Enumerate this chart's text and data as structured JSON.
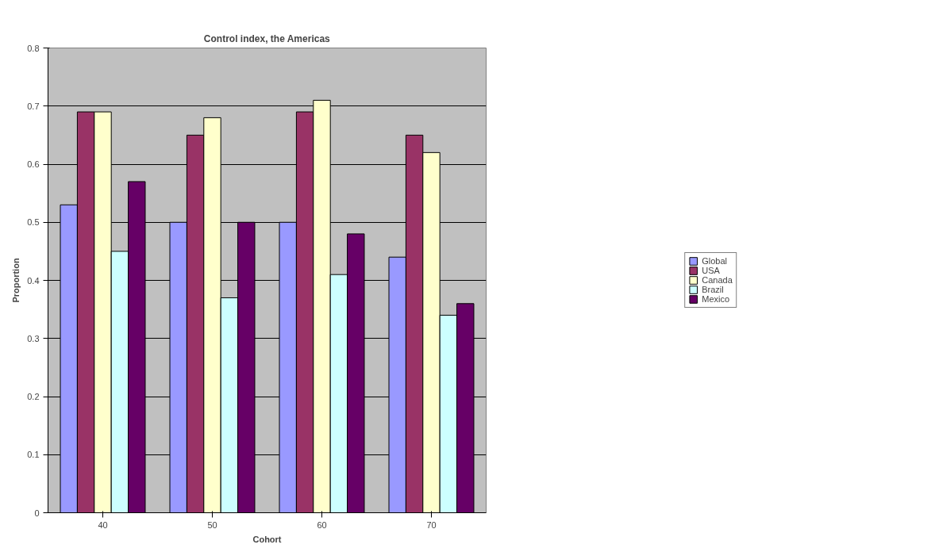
{
  "chart_data": {
    "type": "bar",
    "title": "Control index, the Americas",
    "xlabel": "Cohort",
    "ylabel": "Proportion",
    "categories": [
      "40",
      "50",
      "60",
      "70"
    ],
    "series": [
      {
        "name": "Global",
        "color": "#9999ff",
        "values": [
          0.53,
          0.5,
          0.5,
          0.44
        ]
      },
      {
        "name": "USA",
        "color": "#993366",
        "values": [
          0.69,
          0.65,
          0.69,
          0.65
        ]
      },
      {
        "name": "Canada",
        "color": "#ffffcc",
        "values": [
          0.69,
          0.68,
          0.71,
          0.62
        ]
      },
      {
        "name": "Brazil",
        "color": "#ccffff",
        "values": [
          0.45,
          0.37,
          0.41,
          0.34
        ]
      },
      {
        "name": "Mexico",
        "color": "#660066",
        "values": [
          0.57,
          0.5,
          0.48,
          0.36
        ]
      }
    ],
    "ylim": [
      0,
      0.8
    ],
    "yticks": [
      0,
      0.1,
      0.2,
      0.3,
      0.4,
      0.5,
      0.6,
      0.7,
      0.8
    ],
    "grid": "y",
    "legend": "right"
  }
}
